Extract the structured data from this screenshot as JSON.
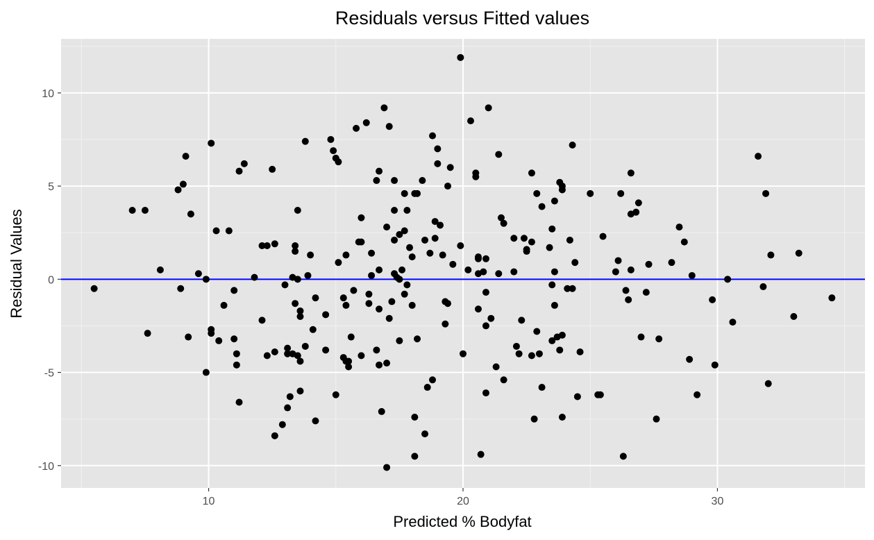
{
  "chart_data": {
    "type": "scatter",
    "title": "Residuals versus Fitted values",
    "xlabel": "Predicted % Bodyfat",
    "ylabel": "Residual Values",
    "xlim": [
      4.2,
      35.8
    ],
    "ylim": [
      -11.2,
      12.9
    ],
    "x_ticks": [
      10,
      20,
      30
    ],
    "x_tick_labels": [
      "10",
      "20",
      "30"
    ],
    "y_ticks": [
      -10,
      -5,
      0,
      5,
      10
    ],
    "y_tick_labels": [
      "-10",
      "-5",
      "0",
      "5",
      "10"
    ],
    "grid": true,
    "reference_line": {
      "y": 0,
      "color": "#0000ff"
    },
    "point_color": "#000000",
    "panel_background": "#e5e5e5",
    "points": [
      [
        5.5,
        -0.5
      ],
      [
        7.0,
        3.7
      ],
      [
        7.5,
        3.7
      ],
      [
        7.6,
        -2.9
      ],
      [
        8.1,
        0.5
      ],
      [
        8.8,
        4.8
      ],
      [
        9.0,
        5.1
      ],
      [
        9.1,
        6.6
      ],
      [
        9.2,
        -3.1
      ],
      [
        9.3,
        3.5
      ],
      [
        8.9,
        -0.5
      ],
      [
        9.6,
        0.3
      ],
      [
        9.9,
        0.0
      ],
      [
        9.9,
        -5.0
      ],
      [
        10.1,
        7.3
      ],
      [
        10.1,
        -2.7
      ],
      [
        10.1,
        -2.9
      ],
      [
        10.3,
        2.6
      ],
      [
        10.4,
        -3.3
      ],
      [
        10.6,
        -1.4
      ],
      [
        10.8,
        2.6
      ],
      [
        11.0,
        -0.6
      ],
      [
        11.0,
        -3.2
      ],
      [
        11.1,
        -4.0
      ],
      [
        11.1,
        -4.6
      ],
      [
        11.2,
        5.8
      ],
      [
        11.2,
        -6.6
      ],
      [
        11.4,
        6.2
      ],
      [
        11.8,
        0.1
      ],
      [
        12.1,
        1.8
      ],
      [
        12.1,
        -2.2
      ],
      [
        12.3,
        1.8
      ],
      [
        12.3,
        -4.1
      ],
      [
        12.5,
        5.9
      ],
      [
        12.6,
        1.9
      ],
      [
        12.6,
        -8.4
      ],
      [
        12.6,
        -3.9
      ],
      [
        12.9,
        -7.8
      ],
      [
        13.0,
        -0.3
      ],
      [
        13.1,
        -3.7
      ],
      [
        13.1,
        -4.0
      ],
      [
        13.1,
        -6.9
      ],
      [
        13.2,
        -6.3
      ],
      [
        13.3,
        0.1
      ],
      [
        13.3,
        -4.0
      ],
      [
        13.4,
        1.5
      ],
      [
        13.4,
        1.8
      ],
      [
        13.4,
        -1.3
      ],
      [
        13.5,
        3.7
      ],
      [
        13.5,
        0.0
      ],
      [
        13.5,
        -4.1
      ],
      [
        13.6,
        -1.7
      ],
      [
        13.6,
        -2.0
      ],
      [
        13.6,
        -6.0
      ],
      [
        13.6,
        -4.4
      ],
      [
        13.8,
        7.4
      ],
      [
        13.8,
        -3.6
      ],
      [
        13.9,
        0.2
      ],
      [
        14.0,
        1.3
      ],
      [
        14.1,
        -2.7
      ],
      [
        14.2,
        -1.0
      ],
      [
        14.2,
        -7.6
      ],
      [
        14.6,
        -1.9
      ],
      [
        14.6,
        -3.8
      ],
      [
        14.8,
        7.5
      ],
      [
        14.9,
        6.9
      ],
      [
        15.0,
        6.5
      ],
      [
        15.1,
        6.3
      ],
      [
        15.1,
        0.9
      ],
      [
        15.0,
        -6.2
      ],
      [
        15.3,
        -1.0
      ],
      [
        15.4,
        1.3
      ],
      [
        15.4,
        -1.4
      ],
      [
        15.3,
        -4.2
      ],
      [
        15.4,
        -4.4
      ],
      [
        15.5,
        -4.4
      ],
      [
        15.5,
        -4.7
      ],
      [
        15.6,
        -3.1
      ],
      [
        15.7,
        -0.6
      ],
      [
        15.8,
        8.1
      ],
      [
        15.9,
        2.0
      ],
      [
        16.0,
        2.0
      ],
      [
        16.0,
        3.3
      ],
      [
        16.0,
        -4.1
      ],
      [
        16.2,
        8.4
      ],
      [
        16.3,
        -1.3
      ],
      [
        16.3,
        -0.8
      ],
      [
        16.4,
        1.4
      ],
      [
        16.4,
        0.2
      ],
      [
        16.6,
        5.3
      ],
      [
        16.6,
        -3.8
      ],
      [
        16.7,
        5.8
      ],
      [
        16.7,
        0.5
      ],
      [
        16.7,
        -1.6
      ],
      [
        16.7,
        -4.6
      ],
      [
        16.8,
        -7.1
      ],
      [
        16.9,
        9.2
      ],
      [
        17.0,
        2.8
      ],
      [
        17.0,
        -4.5
      ],
      [
        17.0,
        -10.1
      ],
      [
        17.1,
        8.2
      ],
      [
        17.1,
        -2.1
      ],
      [
        17.2,
        -1.2
      ],
      [
        17.3,
        3.7
      ],
      [
        17.3,
        0.3
      ],
      [
        17.3,
        2.1
      ],
      [
        17.3,
        5.3
      ],
      [
        17.4,
        0.1
      ],
      [
        17.5,
        0.0
      ],
      [
        17.5,
        2.4
      ],
      [
        17.5,
        -3.3
      ],
      [
        17.6,
        0.5
      ],
      [
        17.7,
        4.6
      ],
      [
        17.7,
        2.6
      ],
      [
        17.7,
        -0.8
      ],
      [
        17.8,
        3.7
      ],
      [
        17.8,
        -0.3
      ],
      [
        17.9,
        1.7
      ],
      [
        18.0,
        1.2
      ],
      [
        18.0,
        -1.4
      ],
      [
        18.1,
        4.6
      ],
      [
        18.1,
        -7.4
      ],
      [
        18.1,
        -9.5
      ],
      [
        18.2,
        4.6
      ],
      [
        18.2,
        -3.2
      ],
      [
        18.4,
        5.3
      ],
      [
        18.5,
        2.1
      ],
      [
        18.5,
        -8.3
      ],
      [
        18.6,
        -5.8
      ],
      [
        18.7,
        1.4
      ],
      [
        18.8,
        7.7
      ],
      [
        18.8,
        -5.4
      ],
      [
        18.9,
        2.2
      ],
      [
        18.9,
        3.1
      ],
      [
        19.0,
        6.2
      ],
      [
        19.0,
        7.0
      ],
      [
        19.1,
        2.9
      ],
      [
        19.2,
        1.3
      ],
      [
        19.3,
        -2.4
      ],
      [
        19.3,
        -1.2
      ],
      [
        19.4,
        5.0
      ],
      [
        19.4,
        -1.3
      ],
      [
        19.5,
        6.0
      ],
      [
        19.6,
        0.8
      ],
      [
        19.9,
        1.8
      ],
      [
        19.9,
        11.9
      ],
      [
        20.0,
        -4.0
      ],
      [
        20.2,
        0.5
      ],
      [
        20.3,
        8.5
      ],
      [
        20.5,
        5.7
      ],
      [
        20.5,
        5.5
      ],
      [
        20.6,
        0.3
      ],
      [
        20.6,
        1.1
      ],
      [
        20.6,
        1.2
      ],
      [
        20.6,
        -1.6
      ],
      [
        20.7,
        -9.4
      ],
      [
        20.8,
        0.4
      ],
      [
        20.9,
        1.1
      ],
      [
        20.9,
        -0.7
      ],
      [
        20.9,
        -2.5
      ],
      [
        20.9,
        -6.1
      ],
      [
        21.0,
        9.2
      ],
      [
        21.1,
        -2.1
      ],
      [
        21.3,
        -4.7
      ],
      [
        21.4,
        6.7
      ],
      [
        21.4,
        0.3
      ],
      [
        21.5,
        3.3
      ],
      [
        21.6,
        3.0
      ],
      [
        21.6,
        -5.4
      ],
      [
        22.0,
        2.2
      ],
      [
        22.0,
        0.4
      ],
      [
        22.1,
        -3.6
      ],
      [
        22.2,
        -4.0
      ],
      [
        22.3,
        -2.2
      ],
      [
        22.4,
        2.2
      ],
      [
        22.5,
        1.6
      ],
      [
        22.5,
        1.5
      ],
      [
        22.7,
        5.7
      ],
      [
        22.7,
        2.0
      ],
      [
        22.7,
        -4.1
      ],
      [
        22.8,
        -7.5
      ],
      [
        22.9,
        4.6
      ],
      [
        22.9,
        -2.8
      ],
      [
        23.0,
        -4.0
      ],
      [
        23.1,
        3.9
      ],
      [
        23.1,
        -5.8
      ],
      [
        23.4,
        1.7
      ],
      [
        23.5,
        2.7
      ],
      [
        23.5,
        -0.3
      ],
      [
        23.5,
        -3.3
      ],
      [
        23.6,
        4.2
      ],
      [
        23.6,
        0.4
      ],
      [
        23.6,
        -1.4
      ],
      [
        23.7,
        -3.1
      ],
      [
        23.8,
        5.2
      ],
      [
        23.8,
        -3.8
      ],
      [
        23.9,
        5.0
      ],
      [
        23.9,
        4.8
      ],
      [
        23.9,
        -3.0
      ],
      [
        23.9,
        -7.4
      ],
      [
        24.1,
        -0.5
      ],
      [
        24.2,
        2.1
      ],
      [
        24.3,
        -0.5
      ],
      [
        24.3,
        7.2
      ],
      [
        24.4,
        0.9
      ],
      [
        24.5,
        -6.3
      ],
      [
        24.6,
        -3.9
      ],
      [
        25.0,
        4.6
      ],
      [
        25.3,
        -6.2
      ],
      [
        25.4,
        -6.2
      ],
      [
        25.5,
        2.3
      ],
      [
        26.0,
        0.4
      ],
      [
        26.1,
        1.0
      ],
      [
        26.2,
        4.6
      ],
      [
        26.3,
        -9.5
      ],
      [
        26.4,
        -0.6
      ],
      [
        26.5,
        -1.1
      ],
      [
        26.6,
        5.7
      ],
      [
        26.6,
        3.5
      ],
      [
        26.6,
        0.5
      ],
      [
        26.8,
        3.6
      ],
      [
        26.9,
        4.1
      ],
      [
        27.0,
        -3.1
      ],
      [
        27.2,
        -0.7
      ],
      [
        27.3,
        0.8
      ],
      [
        27.6,
        -7.5
      ],
      [
        27.7,
        -3.2
      ],
      [
        28.2,
        0.9
      ],
      [
        28.5,
        2.8
      ],
      [
        28.7,
        2.0
      ],
      [
        28.9,
        -4.3
      ],
      [
        29.0,
        0.2
      ],
      [
        29.2,
        -6.2
      ],
      [
        29.8,
        -1.1
      ],
      [
        29.9,
        -4.6
      ],
      [
        30.4,
        0.0
      ],
      [
        30.6,
        -2.3
      ],
      [
        31.6,
        6.6
      ],
      [
        31.8,
        -0.4
      ],
      [
        31.9,
        4.6
      ],
      [
        32.0,
        -5.6
      ],
      [
        32.1,
        1.3
      ],
      [
        33.0,
        -2.0
      ],
      [
        33.2,
        1.4
      ],
      [
        34.5,
        -1.0
      ]
    ]
  }
}
